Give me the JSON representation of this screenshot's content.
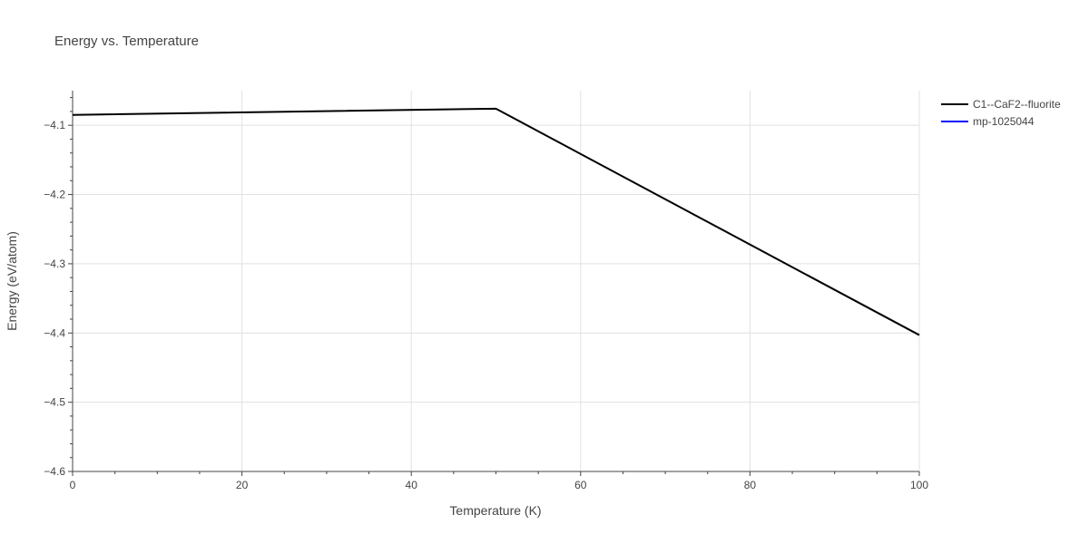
{
  "chart_data": {
    "type": "line",
    "title": "Energy vs. Temperature",
    "xlabel": "Temperature (K)",
    "ylabel": "Energy (eV/atom)",
    "xlim": [
      0,
      100
    ],
    "ylim": [
      -4.6,
      -4.05
    ],
    "x_ticks": [
      0,
      20,
      40,
      60,
      80,
      100
    ],
    "y_ticks": [
      -4.6,
      -4.5,
      -4.4,
      -4.3,
      -4.2,
      -4.1
    ],
    "x_tick_labels": [
      "0",
      "20",
      "40",
      "60",
      "80",
      "100"
    ],
    "y_tick_labels": [
      "−4.6",
      "−4.5",
      "−4.4",
      "−4.3",
      "−4.2",
      "−4.1"
    ],
    "grid": true,
    "legend_position": "top-right",
    "series": [
      {
        "name": "C1--CaF2--fluorite",
        "color": "#000000",
        "x": [
          0,
          50,
          100
        ],
        "y": [
          -4.085,
          -4.076,
          -4.403
        ]
      },
      {
        "name": "mp-1025044",
        "color": "#0000ff",
        "x": [],
        "y": []
      }
    ]
  }
}
